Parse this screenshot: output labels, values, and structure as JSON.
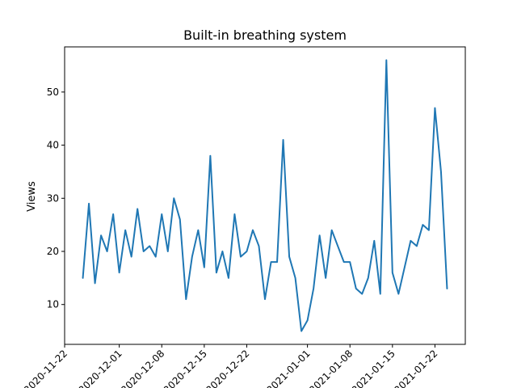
{
  "chart_data": {
    "type": "line",
    "title": "Built-in breathing system",
    "xlabel": "",
    "ylabel": "Views",
    "xlim": [
      "2020-11-22",
      "2021-01-27"
    ],
    "ylim": [
      2.5,
      58.5
    ],
    "x_ticks": [
      "2020-11-22",
      "2020-12-01",
      "2020-12-08",
      "2020-12-15",
      "2020-12-22",
      "2021-01-01",
      "2021-01-08",
      "2021-01-15",
      "2021-01-22"
    ],
    "x_tick_labels": [
      "2020-11-22",
      "2020-12-01",
      "2020-12-08",
      "2020-12-15",
      "2020-12-22",
      "2021-01-01",
      "2021-01-08",
      "2021-01-15",
      "2021-01-22"
    ],
    "y_ticks": [
      10,
      20,
      30,
      40,
      50
    ],
    "y_tick_labels": [
      "10",
      "20",
      "30",
      "40",
      "50"
    ],
    "grid": false,
    "color": "#1f77b4",
    "series": [
      {
        "x": [
          "2020-11-25",
          "2020-11-26",
          "2020-11-27",
          "2020-11-28",
          "2020-11-29",
          "2020-11-30",
          "2020-12-01",
          "2020-12-02",
          "2020-12-03",
          "2020-12-04",
          "2020-12-05",
          "2020-12-06",
          "2020-12-07",
          "2020-12-08",
          "2020-12-09",
          "2020-12-10",
          "2020-12-11",
          "2020-12-12",
          "2020-12-13",
          "2020-12-14",
          "2020-12-15",
          "2020-12-16",
          "2020-12-17",
          "2020-12-18",
          "2020-12-19",
          "2020-12-20",
          "2020-12-21",
          "2020-12-22",
          "2020-12-23",
          "2020-12-24",
          "2020-12-25",
          "2020-12-26",
          "2020-12-27",
          "2020-12-28",
          "2020-12-29",
          "2020-12-30",
          "2020-12-31",
          "2021-01-01",
          "2021-01-02",
          "2021-01-03",
          "2021-01-04",
          "2021-01-05",
          "2021-01-06",
          "2021-01-07",
          "2021-01-08",
          "2021-01-09",
          "2021-01-10",
          "2021-01-11",
          "2021-01-12",
          "2021-01-13",
          "2021-01-14",
          "2021-01-15",
          "2021-01-16",
          "2021-01-17",
          "2021-01-18",
          "2021-01-19",
          "2021-01-20",
          "2021-01-21",
          "2021-01-22",
          "2021-01-23",
          "2021-01-24"
        ],
        "values": [
          15,
          29,
          14,
          23,
          20,
          27,
          16,
          24,
          19,
          28,
          20,
          21,
          19,
          27,
          20,
          30,
          26,
          11,
          19,
          24,
          17,
          38,
          16,
          20,
          15,
          27,
          19,
          20,
          24,
          21,
          11,
          18,
          18,
          41,
          19,
          15,
          5,
          7,
          13,
          23,
          15,
          24,
          21,
          18,
          18,
          13,
          12,
          15,
          22,
          12,
          56,
          16,
          12,
          17,
          22,
          21,
          25,
          24,
          47,
          35,
          13
        ]
      }
    ]
  }
}
